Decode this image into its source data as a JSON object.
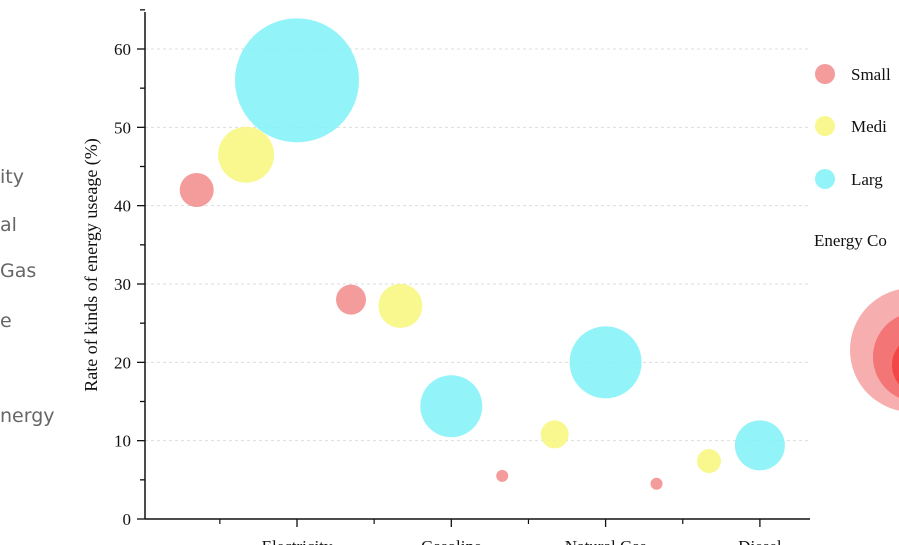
{
  "left_panel": {
    "labels": [
      "ity",
      "al",
      "Gas",
      "e",
      "nergy"
    ]
  },
  "chart_data": {
    "type": "scatter",
    "ylabel": "Rate of kinds of energy useage (%)",
    "ylim": [
      0,
      65
    ],
    "yticks": [
      0,
      10,
      20,
      30,
      40,
      50,
      60
    ],
    "grid": true,
    "legend_placement": "right",
    "categories": [
      "Electricity",
      "Gasoline",
      "Natural Gas",
      "Diesel"
    ],
    "category_labels_visible": [
      "Electricity",
      "Gasoline",
      "Natural Gas",
      "Diesel"
    ],
    "series": [
      {
        "name": "Small",
        "color": "#f28b8b",
        "points": [
          {
            "x": 0.35,
            "y": 42,
            "size": 17
          },
          {
            "x": 1.35,
            "y": 28,
            "size": 15
          },
          {
            "x": 2.33,
            "y": 5.5,
            "size": 6
          },
          {
            "x": 3.33,
            "y": 4.5,
            "size": 6
          }
        ]
      },
      {
        "name": "Medium",
        "color": "#f7f77a",
        "points": [
          {
            "x": 0.67,
            "y": 46.5,
            "size": 28
          },
          {
            "x": 1.67,
            "y": 27.2,
            "size": 22
          },
          {
            "x": 2.67,
            "y": 10.8,
            "size": 14
          },
          {
            "x": 3.67,
            "y": 7.4,
            "size": 12
          }
        ]
      },
      {
        "name": "Large",
        "color": "#7ff2f7",
        "points": [
          {
            "x": 1.0,
            "y": 56,
            "size": 62
          },
          {
            "x": 2.0,
            "y": 14.4,
            "size": 31
          },
          {
            "x": 3.0,
            "y": 20,
            "size": 36
          },
          {
            "x": 4.0,
            "y": 9.4,
            "size": 25
          }
        ]
      }
    ],
    "legend": {
      "entries": [
        "Small",
        "Medium",
        "Large"
      ],
      "visible_entries": [
        "Small",
        "Medi",
        "Larg"
      ],
      "size_title": "Energy Co"
    }
  }
}
